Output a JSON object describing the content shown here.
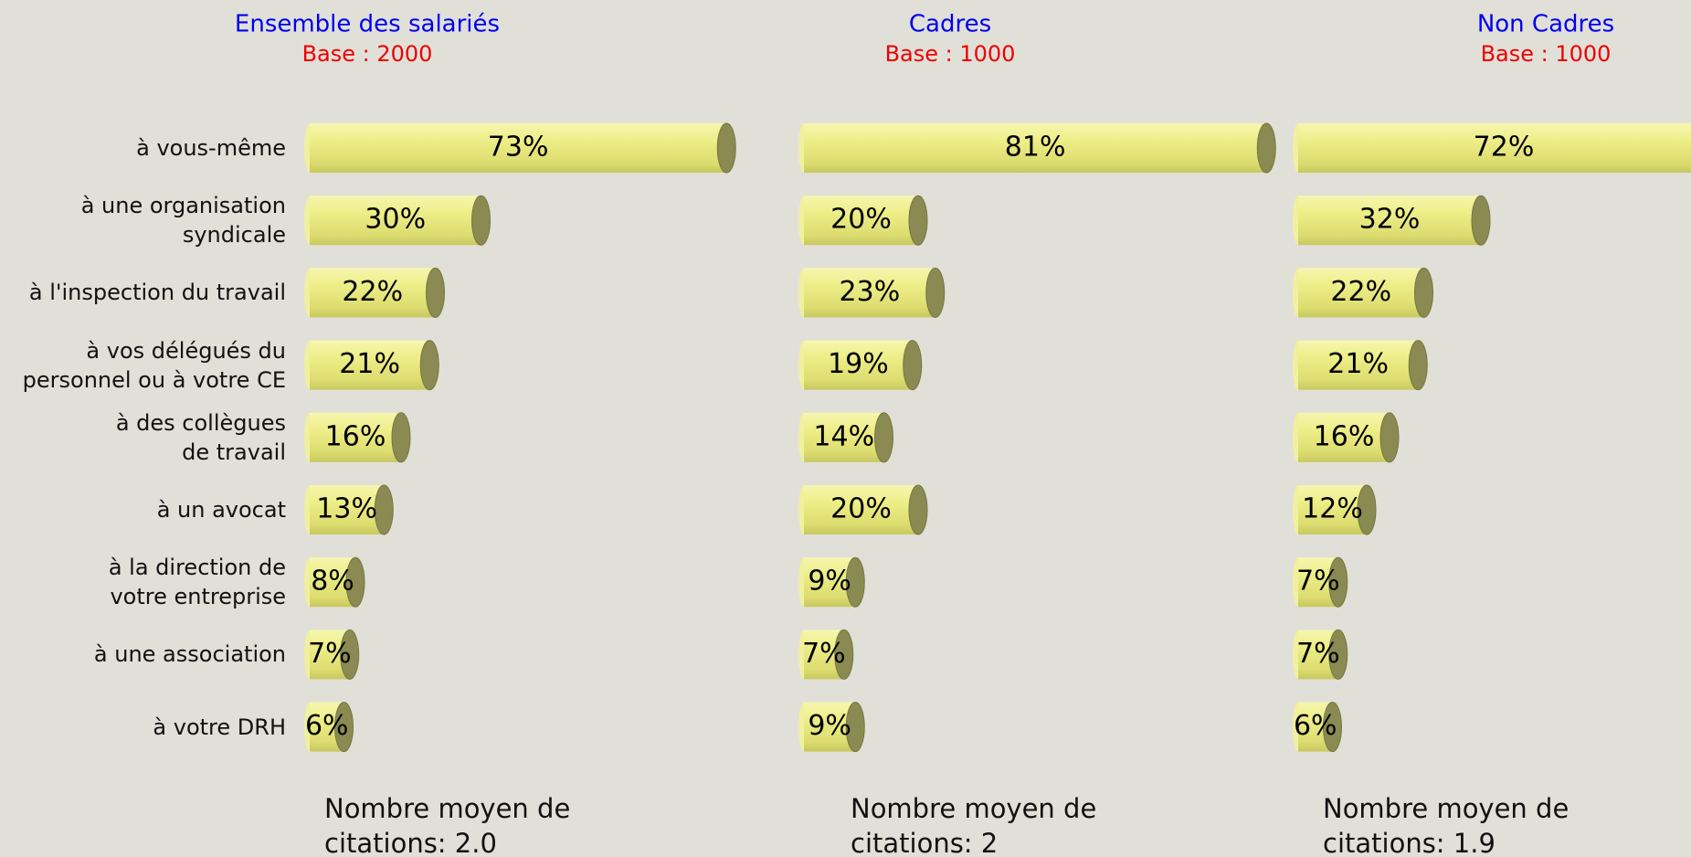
{
  "chart_data": [
    {
      "type": "bar",
      "title": "Ensemble des salariés",
      "subtitle": "Base : 2000",
      "categories": [
        "à vous-même",
        "à une organisation syndicale",
        "à l'inspection du travail",
        "à vos délégués du personnel ou à votre CE",
        "à des collègues de travail",
        "à un avocat",
        "à la direction de votre entreprise",
        "à une association",
        "à votre DRH"
      ],
      "values": [
        73,
        30,
        22,
        21,
        16,
        13,
        8,
        7,
        6
      ],
      "value_labels": [
        "73%",
        "30%",
        "22%",
        "21%",
        "16%",
        "13%",
        "8%",
        "7%",
        "6%"
      ],
      "color": "#eeee88",
      "note": "Nombre moyen de citations: 2.0"
    },
    {
      "type": "bar",
      "title": "Cadres",
      "subtitle": "Base : 1000",
      "values": [
        81,
        20,
        23,
        19,
        14,
        20,
        9,
        7,
        9
      ],
      "value_labels": [
        "81%",
        "20%",
        "23%",
        "19%",
        "14%",
        "20%",
        "9%",
        "7%",
        "9%"
      ],
      "color": "#eeee88",
      "note": "Nombre moyen de citations: 2"
    },
    {
      "type": "bar",
      "title": "Non Cadres",
      "subtitle": "Base : 1000",
      "values": [
        72,
        32,
        22,
        21,
        16,
        12,
        7,
        7,
        6
      ],
      "value_labels": [
        "72%",
        "32%",
        "22%",
        "21%",
        "16%",
        "12%",
        "7%",
        "7%",
        "6%"
      ],
      "color": "#eeee88",
      "note": "Nombre moyen de citations: 1.9"
    }
  ]
}
